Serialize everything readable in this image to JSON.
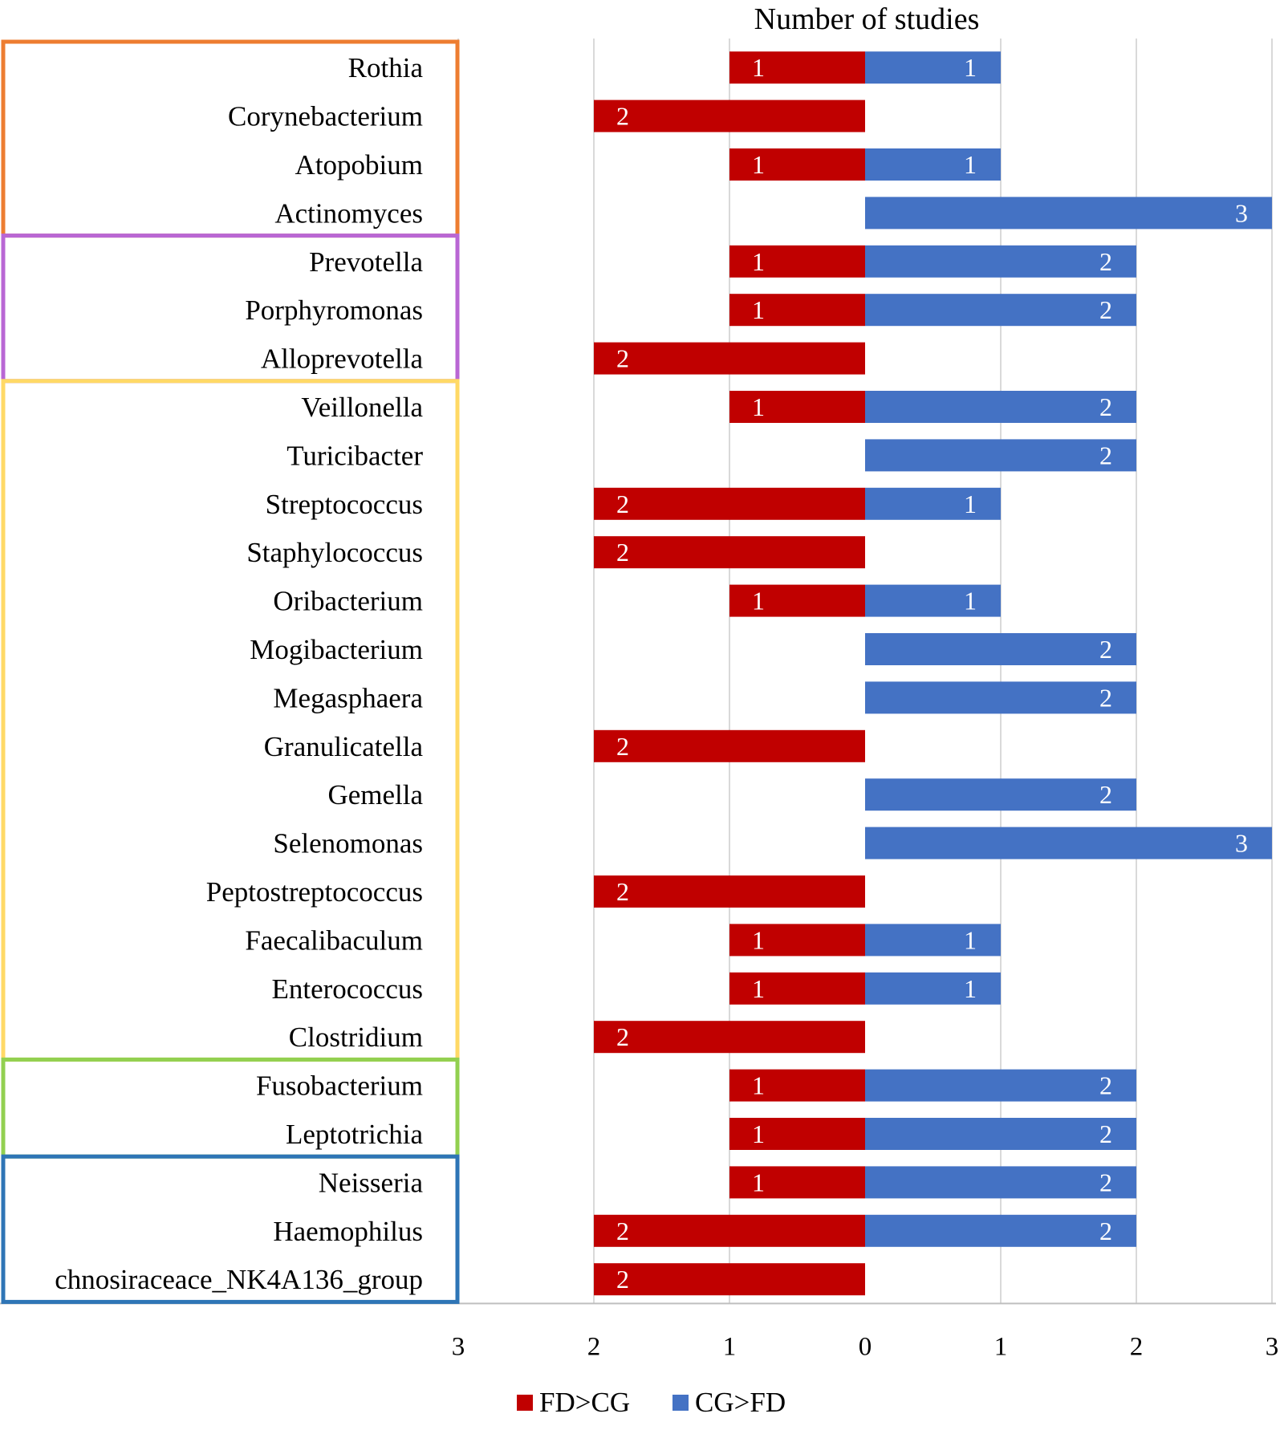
{
  "chart_data": {
    "type": "bar",
    "orientation": "horizontal-diverging",
    "title": "Number of studies",
    "xlabel": "",
    "ylabel": "",
    "xlim_left": [
      0,
      3
    ],
    "xlim_right": [
      0,
      3
    ],
    "x_ticks_left": [
      "3",
      "2",
      "1",
      "0"
    ],
    "x_ticks_right": [
      "1",
      "2",
      "3"
    ],
    "grid": "vertical",
    "legend_position": "bottom",
    "categories": [
      "Rothia",
      "Corynebacterium",
      "Atopobium",
      "Actinomyces",
      "Prevotella",
      "Porphyromonas",
      "Alloprevotella",
      "Veillonella",
      "Turicibacter",
      "Streptococcus",
      "Staphylococcus",
      "Oribacterium",
      "Mogibacterium",
      "Megasphaera",
      "Granulicatella",
      "Gemella",
      "Selenomonas",
      "Peptostreptococcus",
      "Faecalibaculum",
      "Enterococcus",
      "Clostridium",
      "Fusobacterium",
      "Leptotrichia",
      "Neisseria",
      "Haemophilus",
      "chnosiraceace_NK4A136_group"
    ],
    "series": [
      {
        "name": "FD>CG",
        "color": "#c00000",
        "direction": "left",
        "values": [
          1,
          2,
          1,
          0,
          1,
          1,
          2,
          1,
          0,
          2,
          2,
          1,
          0,
          0,
          2,
          0,
          0,
          2,
          1,
          1,
          2,
          1,
          1,
          1,
          2,
          2
        ]
      },
      {
        "name": "CG>FD",
        "color": "#4472c4",
        "direction": "right",
        "values": [
          1,
          0,
          1,
          3,
          2,
          2,
          0,
          2,
          2,
          1,
          0,
          1,
          2,
          2,
          0,
          2,
          3,
          0,
          1,
          1,
          0,
          2,
          2,
          2,
          2,
          0
        ]
      }
    ],
    "groups": [
      {
        "color": "#ed7d31",
        "categories": [
          "Rothia",
          "Corynebacterium",
          "Atopobium",
          "Actinomyces"
        ]
      },
      {
        "color": "#b967d4",
        "categories": [
          "Prevotella",
          "Porphyromonas",
          "Alloprevotella"
        ]
      },
      {
        "color": "#ffd966",
        "categories": [
          "Veillonella",
          "Turicibacter",
          "Streptococcus",
          "Staphylococcus",
          "Oribacterium",
          "Mogibacterium",
          "Megasphaera",
          "Granulicatella",
          "Gemella",
          "Selenomonas",
          "Peptostreptococcus",
          "Faecalibaculum",
          "Enterococcus",
          "Clostridium"
        ]
      },
      {
        "color": "#92d050",
        "categories": [
          "Fusobacterium",
          "Leptotrichia"
        ]
      },
      {
        "color": "#2e75b6",
        "categories": [
          "Neisseria",
          "Haemophilus",
          "chnosiraceace_NK4A136_group"
        ]
      }
    ],
    "gridline_color": "#d9d9d9",
    "axis_color": "#bfbfbf"
  }
}
